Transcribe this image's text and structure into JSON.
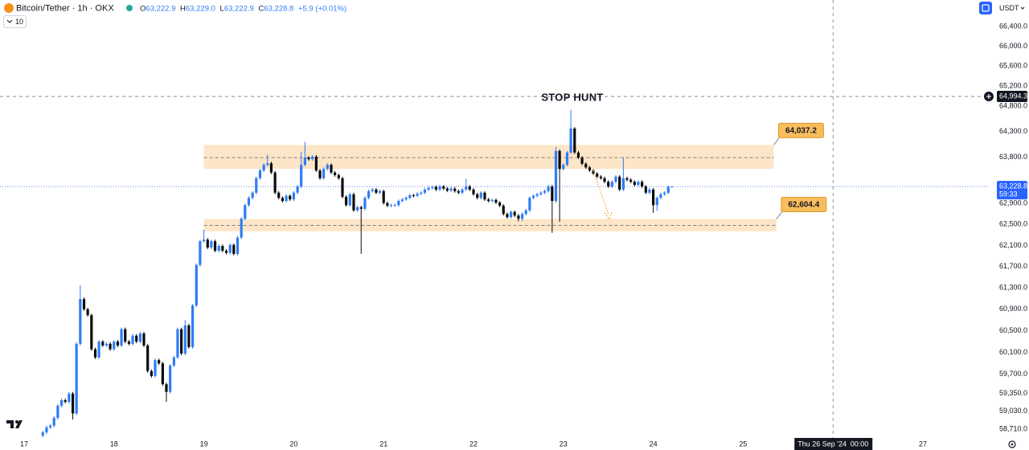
{
  "chart_data": {
    "type": "candlestick",
    "title": "Bitcoin/Tether · 1h · OKX",
    "legend": [
      {
        "label": "O",
        "value": "63,222.9"
      },
      {
        "label": "H",
        "value": "63,229.0"
      },
      {
        "label": "L",
        "value": "63,222.9"
      },
      {
        "label": "C",
        "value": "63,228.8"
      }
    ],
    "change": "+5.9 (+0.01%)",
    "indicator_count": "10",
    "currency": "USDT",
    "annotation": "STOP HUNT",
    "up_color": "#2f7cf6",
    "down_color": "#0b0b0b",
    "log_scale": true,
    "grid": false,
    "xlim": [
      16.732,
      27.733
    ],
    "ylim": [
      58550,
      66940
    ],
    "xticks": [
      17,
      18,
      19,
      20,
      21,
      22,
      23,
      24,
      25,
      27
    ],
    "yticks": [
      {
        "value": 58710,
        "label": "58,710.0"
      },
      {
        "value": 59030,
        "label": "59,030.0"
      },
      {
        "value": 59350,
        "label": "59,350.0"
      },
      {
        "value": 59700,
        "label": "59,700.0"
      },
      {
        "value": 60100,
        "label": "60,100.0"
      },
      {
        "value": 60500,
        "label": "60,500.0"
      },
      {
        "value": 60900,
        "label": "60,900.0"
      },
      {
        "value": 61300,
        "label": "61,300.0"
      },
      {
        "value": 61700,
        "label": "61,700.0"
      },
      {
        "value": 62100,
        "label": "62,100.0"
      },
      {
        "value": 62500,
        "label": "62,500.0"
      },
      {
        "value": 62900,
        "label": "62,900.0"
      },
      {
        "value": 63200,
        "label": "63,200.0"
      },
      {
        "value": 63800,
        "label": "63,800.0"
      },
      {
        "value": 64300,
        "label": "64,300.0"
      },
      {
        "value": 64800,
        "label": "64,800.0"
      },
      {
        "value": 65200,
        "label": "65,200.0"
      },
      {
        "value": 65600,
        "label": "65,600.0"
      },
      {
        "value": 66000,
        "label": "66,000.0"
      },
      {
        "value": 66400,
        "label": "66,400.0"
      }
    ],
    "zones": [
      {
        "top": {
          "value": 64037.2,
          "label": "64,037.2"
        },
        "bottom": 63570,
        "mid": 63790,
        "start": 19,
        "end": 25.34
      },
      {
        "top": {
          "value": 62604.4,
          "label": "62,604.4"
        },
        "bottom": 62370,
        "mid": 62480,
        "start": 19,
        "end": 25.37
      }
    ],
    "last_price": {
      "value": 63228.8,
      "label": "63,228.8",
      "countdown": "59:33"
    },
    "crosshair": {
      "price": {
        "value": 64994.3,
        "label": "64,994.3"
      },
      "time": {
        "value": 26,
        "label": "Thu 26 Sep '24"
      },
      "clock": "00:00"
    },
    "x": [
      17.208,
      17.25,
      17.292,
      17.333,
      17.375,
      17.417,
      17.458,
      17.5,
      17.542,
      17.583,
      17.625,
      17.667,
      17.708,
      17.75,
      17.792,
      17.833,
      17.875,
      17.917,
      17.958,
      18,
      18.042,
      18.083,
      18.125,
      18.167,
      18.208,
      18.25,
      18.292,
      18.333,
      18.375,
      18.417,
      18.458,
      18.5,
      18.542,
      18.583,
      18.625,
      18.667,
      18.708,
      18.75,
      18.792,
      18.833,
      18.875,
      18.917,
      18.958,
      19,
      19.042,
      19.083,
      19.125,
      19.167,
      19.208,
      19.25,
      19.292,
      19.333,
      19.375,
      19.417,
      19.458,
      19.5,
      19.542,
      19.583,
      19.625,
      19.667,
      19.708,
      19.75,
      19.792,
      19.833,
      19.875,
      19.917,
      19.958,
      20,
      20.042,
      20.083,
      20.125,
      20.167,
      20.208,
      20.25,
      20.292,
      20.333,
      20.375,
      20.417,
      20.458,
      20.5,
      20.542,
      20.583,
      20.625,
      20.667,
      20.708,
      20.75,
      20.792,
      20.833,
      20.875,
      20.917,
      20.958,
      21,
      21.042,
      21.083,
      21.125,
      21.167,
      21.208,
      21.25,
      21.292,
      21.333,
      21.375,
      21.417,
      21.458,
      21.5,
      21.542,
      21.583,
      21.625,
      21.667,
      21.708,
      21.75,
      21.792,
      21.833,
      21.875,
      21.917,
      21.958,
      22,
      22.042,
      22.083,
      22.125,
      22.167,
      22.208,
      22.25,
      22.292,
      22.333,
      22.375,
      22.417,
      22.458,
      22.5,
      22.542,
      22.583,
      22.625,
      22.667,
      22.708,
      22.75,
      22.792,
      22.833,
      22.875,
      22.917,
      22.958,
      23,
      23.042,
      23.083,
      23.125,
      23.167,
      23.208,
      23.25,
      23.292,
      23.333,
      23.375,
      23.417,
      23.458,
      23.5,
      23.542,
      23.583,
      23.625,
      23.667,
      23.708,
      23.75,
      23.792,
      23.833,
      23.875,
      23.917,
      23.958,
      24,
      24.042,
      24.083,
      24.125,
      24.167,
      24.208
    ],
    "open": [
      58590,
      58650,
      58740,
      58770,
      58910,
      59130,
      59230,
      59200,
      59350,
      58990,
      60260,
      61090,
      60900,
      60790,
      60160,
      60010,
      60300,
      60230,
      60260,
      60160,
      60300,
      60230,
      60530,
      60300,
      60260,
      60410,
      60300,
      60450,
      60230,
      59760,
      59670,
      59960,
      59900,
      59520,
      59380,
      59860,
      60010,
      60530,
      60080,
      60600,
      60200,
      60970,
      61730,
      62180,
      62210,
      62060,
      62180,
      62000,
      62090,
      62000,
      61960,
      62110,
      61940,
      62250,
      62610,
      62870,
      63010,
      63110,
      63390,
      63540,
      63650,
      63680,
      63500,
      63110,
      63010,
      62950,
      63050,
      62980,
      63110,
      63230,
      63650,
      63790,
      63760,
      63810,
      63540,
      63390,
      63570,
      63650,
      63500,
      63450,
      63390,
      63030,
      62870,
      63080,
      62770,
      62830,
      62800,
      63010,
      63140,
      63170,
      63110,
      63140,
      62910,
      62860,
      62870,
      62870,
      62950,
      62980,
      63010,
      63060,
      63050,
      63090,
      63110,
      63170,
      63200,
      63220,
      63170,
      63230,
      63190,
      63150,
      63190,
      63140,
      63110,
      63170,
      63230,
      63170,
      63080,
      63010,
      63110,
      62980,
      62950,
      62970,
      62920,
      62860,
      62700,
      62640,
      62740,
      62670,
      62610,
      62700,
      62770,
      63010,
      63050,
      63080,
      63110,
      63140,
      63230,
      62950,
      63920,
      63570,
      63650,
      63890,
      64360,
      63890,
      63790,
      63670,
      63600,
      63540,
      63480,
      63420,
      63390,
      63320,
      63230,
      63320,
      63420,
      63170,
      63390,
      63360,
      63320,
      63260,
      63320,
      63230,
      63110,
      63170,
      62870,
      63010,
      63080,
      63110,
      63222.9
    ],
    "high": [
      58680,
      58770,
      58800,
      58940,
      59160,
      59260,
      59260,
      59380,
      59380,
      60290,
      61350,
      61120,
      60930,
      60820,
      60190,
      60330,
      60330,
      60290,
      60290,
      60330,
      60330,
      60560,
      60560,
      60330,
      60440,
      60440,
      60480,
      60480,
      60260,
      59790,
      59990,
      59990,
      59930,
      59550,
      59890,
      60040,
      60560,
      60560,
      60700,
      60630,
      61000,
      61760,
      62210,
      62400,
      62240,
      62210,
      62210,
      62120,
      62120,
      62030,
      62140,
      62140,
      62280,
      62640,
      62900,
      63040,
      63140,
      63420,
      63570,
      63680,
      63850,
      63710,
      63530,
      63140,
      63040,
      63080,
      63080,
      63140,
      63260,
      63900,
      64100,
      63820,
      63840,
      63840,
      63570,
      63600,
      63680,
      63680,
      63530,
      63480,
      63420,
      63060,
      63110,
      63110,
      62860,
      62860,
      63040,
      63170,
      63200,
      63200,
      63170,
      63170,
      62940,
      62900,
      62900,
      62980,
      63010,
      63040,
      63090,
      63090,
      63120,
      63140,
      63200,
      63230,
      63250,
      63250,
      63260,
      63260,
      63220,
      63220,
      63220,
      63170,
      63200,
      63380,
      63260,
      63200,
      63110,
      63140,
      63140,
      63010,
      63000,
      63000,
      62950,
      62890,
      62730,
      62770,
      62770,
      62700,
      62730,
      62800,
      63040,
      63080,
      63110,
      63140,
      63170,
      63260,
      63260,
      64000,
      63950,
      63680,
      63920,
      64730,
      64390,
      63920,
      63820,
      63700,
      63630,
      63570,
      63510,
      63450,
      63420,
      63350,
      63350,
      63450,
      63450,
      63790,
      63420,
      63390,
      63350,
      63350,
      63350,
      63260,
      63200,
      63200,
      63040,
      63110,
      63140,
      63250,
      63229.0
    ],
    "low": [
      58560,
      58620,
      58710,
      58740,
      58880,
      59100,
      59170,
      59170,
      58880,
      58960,
      60230,
      60870,
      60760,
      60130,
      59980,
      59980,
      60200,
      60200,
      60130,
      60130,
      60200,
      60200,
      60270,
      60230,
      60230,
      60270,
      60270,
      60200,
      59730,
      59640,
      59640,
      59870,
      59490,
      59200,
      59350,
      59830,
      59980,
      60050,
      60050,
      60170,
      60170,
      60940,
      61700,
      62150,
      62030,
      62030,
      61970,
      61970,
      61970,
      61930,
      61930,
      61910,
      61910,
      62220,
      62580,
      62840,
      62980,
      63080,
      63360,
      63510,
      63620,
      63470,
      63080,
      62980,
      62920,
      62920,
      62950,
      62950,
      63080,
      63200,
      63620,
      63730,
      63730,
      63510,
      63360,
      63360,
      63540,
      63470,
      63420,
      63360,
      63000,
      62840,
      62840,
      62740,
      62740,
      61940,
      62770,
      62980,
      63110,
      63080,
      63080,
      62880,
      62830,
      62830,
      62840,
      62840,
      62920,
      62950,
      62980,
      63020,
      63020,
      63060,
      63080,
      63140,
      63170,
      63140,
      63140,
      63160,
      63120,
      63120,
      63110,
      63080,
      63080,
      63140,
      63140,
      63050,
      62980,
      62980,
      62950,
      62920,
      62920,
      62890,
      62830,
      62670,
      62610,
      62610,
      62640,
      62560,
      62560,
      62670,
      62740,
      62980,
      63020,
      63050,
      63080,
      63110,
      62340,
      62920,
      62550,
      63540,
      63620,
      63860,
      63860,
      63760,
      63640,
      63570,
      63510,
      63450,
      63390,
      63360,
      63290,
      63200,
      63200,
      63290,
      63140,
      63140,
      63330,
      63290,
      63230,
      63230,
      63200,
      63080,
      63080,
      62720,
      62760,
      62980,
      63050,
      63080,
      63222.9
    ],
    "close": [
      58650,
      58740,
      58770,
      58910,
      59130,
      59230,
      59200,
      59350,
      58990,
      60260,
      61090,
      60900,
      60790,
      60160,
      60010,
      60300,
      60230,
      60260,
      60160,
      60300,
      60230,
      60530,
      60300,
      60260,
      60410,
      60300,
      60450,
      60230,
      59760,
      59670,
      59960,
      59900,
      59520,
      59380,
      59860,
      60010,
      60530,
      60080,
      60600,
      60200,
      60970,
      61730,
      62180,
      62210,
      62060,
      62180,
      62000,
      62090,
      62000,
      61960,
      62110,
      61940,
      62250,
      62610,
      62870,
      63010,
      63110,
      63390,
      63540,
      63650,
      63680,
      63500,
      63110,
      63010,
      62950,
      63050,
      62980,
      63110,
      63230,
      63650,
      63790,
      63760,
      63810,
      63540,
      63390,
      63570,
      63650,
      63500,
      63450,
      63390,
      63030,
      62870,
      63080,
      62770,
      62830,
      62800,
      63010,
      63140,
      63170,
      63110,
      63140,
      62910,
      62860,
      62870,
      62870,
      62950,
      62980,
      63010,
      63060,
      63050,
      63090,
      63110,
      63170,
      63200,
      63220,
      63170,
      63230,
      63190,
      63150,
      63190,
      63140,
      63110,
      63170,
      63230,
      63170,
      63080,
      63010,
      63110,
      62980,
      62950,
      62970,
      62920,
      62860,
      62700,
      62640,
      62740,
      62670,
      62610,
      62700,
      62770,
      63010,
      63050,
      63080,
      63110,
      63140,
      63230,
      62950,
      63920,
      63570,
      63650,
      63890,
      64360,
      63890,
      63790,
      63670,
      63600,
      63540,
      63480,
      63420,
      63390,
      63320,
      63230,
      63320,
      63420,
      63170,
      63390,
      63360,
      63320,
      63260,
      63320,
      63230,
      63110,
      63170,
      62870,
      63010,
      63080,
      63110,
      63222.9,
      63228.8
    ]
  }
}
